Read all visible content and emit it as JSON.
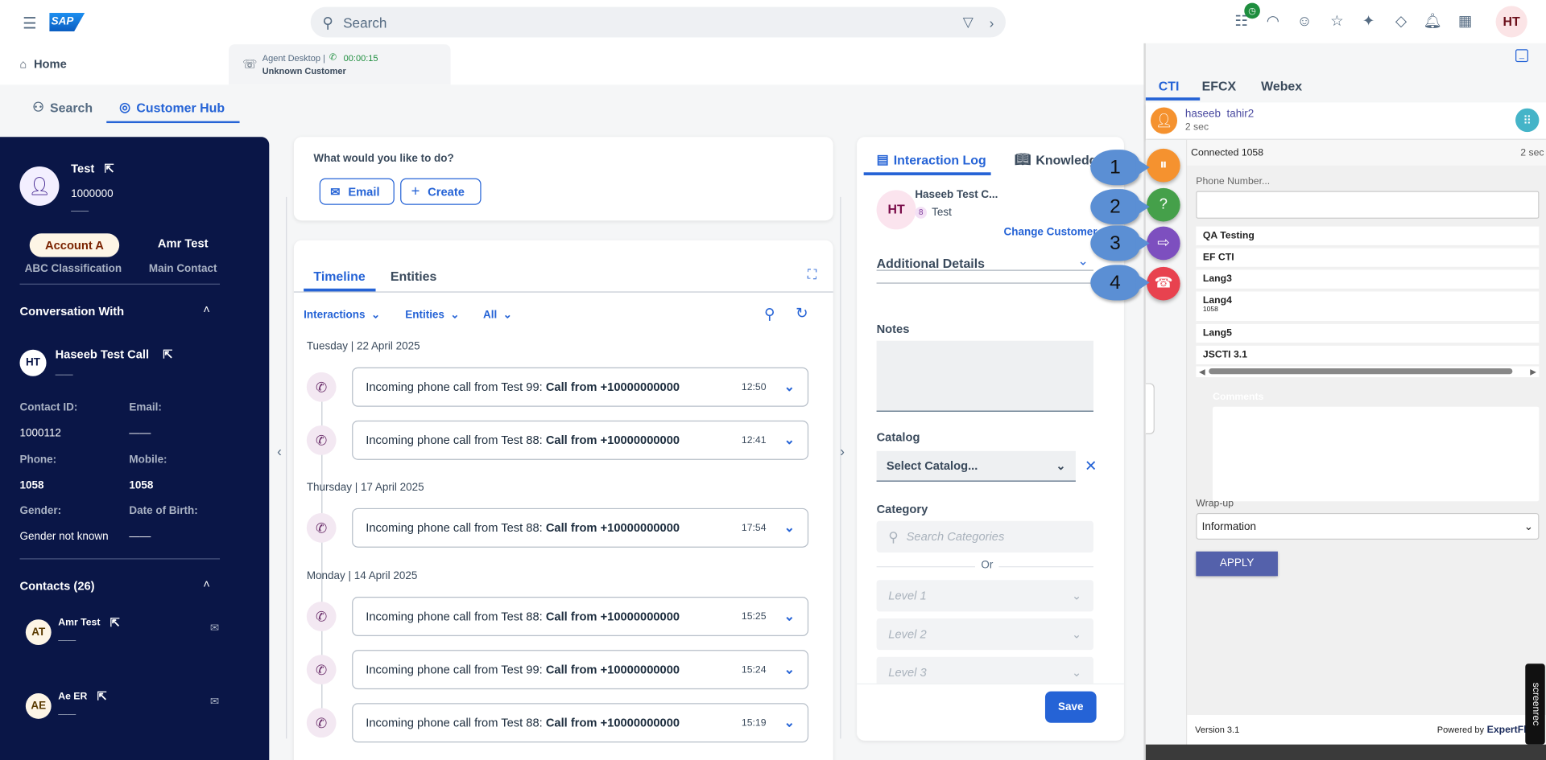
{
  "header": {
    "brand": "SAP",
    "search_placeholder": "Search",
    "avatar": "HT",
    "icons": [
      "interaction-queue-icon",
      "headset-icon",
      "chat-bot-icon",
      "star-icon",
      "ai-assist-icon",
      "diamond-icon",
      "bell-icon",
      "grid-icon"
    ]
  },
  "tabs": {
    "home": "Home",
    "agent_desktop": "Agent Desktop |",
    "timer": "00:00:15",
    "customer": "Unknown Customer"
  },
  "subtabs": {
    "search": "Search",
    "hub": "Customer Hub"
  },
  "sidebar": {
    "name": "Test",
    "id": "1000000",
    "dash": "——",
    "account": "Account A",
    "account_label": "ABC Classification",
    "main_contact": "Amr Test",
    "main_contact_label": "Main Contact",
    "conv_title": "Conversation With",
    "conv_initials": "HT",
    "conv_name": "Haseeb Test Call",
    "fields": [
      {
        "label": "Contact ID:",
        "value": "1000112"
      },
      {
        "label": "Email:",
        "value": "——"
      },
      {
        "label": "Phone:",
        "value": "1058"
      },
      {
        "label": "Mobile:",
        "value": "1058"
      },
      {
        "label": "Gender:",
        "value": "Gender not known"
      },
      {
        "label": "Date of Birth:",
        "value": "——"
      }
    ],
    "contacts_title": "Contacts (26)",
    "contacts": [
      {
        "initials": "AT",
        "name": "Amr Test",
        "sub": "——"
      },
      {
        "initials": "AE",
        "name": "Ae ER",
        "sub": "——"
      }
    ]
  },
  "actions": {
    "title": "What would you like to do?",
    "email": "Email",
    "create": "Create"
  },
  "timeline": {
    "tabs": [
      "Timeline",
      "Entities"
    ],
    "filters": [
      "Interactions",
      "Entities",
      "All"
    ],
    "groups": [
      {
        "date": "Tuesday | 22 April 2025",
        "items": [
          {
            "text": "Incoming phone call from Test 99: ",
            "bold": "Call from +10000000000",
            "time": "12:50"
          },
          {
            "text": "Incoming phone call from Test 88: ",
            "bold": "Call from +10000000000",
            "time": "12:41"
          }
        ]
      },
      {
        "date": "Thursday | 17 April 2025",
        "items": [
          {
            "text": "Incoming phone call from Test 88: ",
            "bold": "Call from +10000000000",
            "time": "17:54"
          }
        ]
      },
      {
        "date": "Monday | 14 April 2025",
        "items": [
          {
            "text": "Incoming phone call from Test 88: ",
            "bold": "Call from +10000000000",
            "time": "15:25"
          },
          {
            "text": "Incoming phone call from Test 99: ",
            "bold": "Call from +10000000000",
            "time": "15:24"
          },
          {
            "text": "Incoming phone call from Test 88: ",
            "bold": "Call from +10000000000",
            "time": "15:19"
          }
        ]
      }
    ]
  },
  "log": {
    "tab1": "Interaction Log",
    "tab2": "Knowledge",
    "initials": "HT",
    "name": "Haseeb Test C...",
    "sub": "Test",
    "change": "Change Customer",
    "additional": "Additional Details",
    "notes": "Notes",
    "catalog": "Catalog",
    "catalog_placeholder": "Select Catalog...",
    "category": "Category",
    "category_placeholder": "Search Categories",
    "or": "Or",
    "levels": [
      "Level 1",
      "Level 2",
      "Level 3"
    ],
    "save": "Save"
  },
  "cti": {
    "tabs": [
      "CTI",
      "EFCX",
      "Webex"
    ],
    "agent": "haseeb  tahir2",
    "agent_time": "2 sec",
    "status": "Connected 1058",
    "status_time": "2 sec",
    "phone_label": "Phone Number...",
    "phone_value": "",
    "list": [
      {
        "name": "QA Testing"
      },
      {
        "name": "EF CTI"
      },
      {
        "name": "Lang3"
      },
      {
        "name": "Lang4",
        "sub": "1058"
      },
      {
        "name": "Lang5"
      },
      {
        "name": "JSCTI 3.1"
      }
    ],
    "comments": "Comments",
    "wrapup_label": "Wrap-up",
    "wrapup_value": "Information",
    "apply": "APPLY",
    "version": "Version 3.1",
    "powered": "Powered by",
    "brand": "ExpertFlow",
    "watermark": "screenrec",
    "buttons": [
      {
        "name": "hold-call",
        "color": "#f5922f"
      },
      {
        "name": "consult-call",
        "color": "#45a04a"
      },
      {
        "name": "transfer-call",
        "color": "#7d4fbf"
      },
      {
        "name": "end-call",
        "color": "#e8424f"
      }
    ],
    "callouts": [
      "1",
      "2",
      "3",
      "4"
    ]
  }
}
